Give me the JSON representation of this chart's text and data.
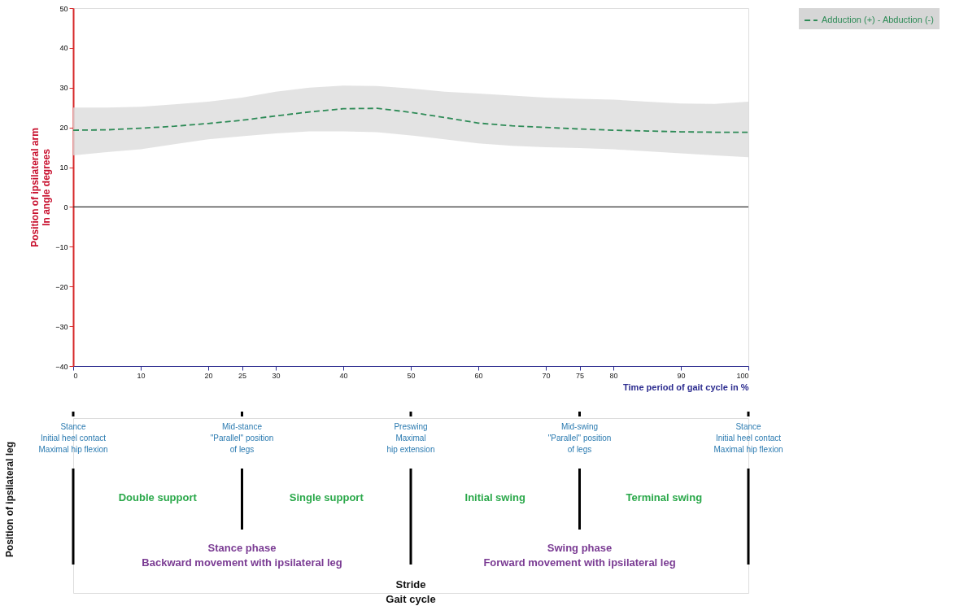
{
  "chart_data": {
    "type": "line",
    "xlabel": "Time period of gait cycle in %",
    "ylabel": "Position of ipsilateral arm\nIn angle degrees",
    "xlim": [
      0,
      100
    ],
    "ylim": [
      -40,
      50
    ],
    "xticks": [
      0,
      10,
      20,
      25,
      30,
      40,
      50,
      60,
      70,
      75,
      80,
      90,
      100
    ],
    "yticks": [
      -40,
      -30,
      -20,
      -10,
      0,
      10,
      20,
      30,
      40,
      50
    ],
    "legend": "right",
    "line_style": "dashed",
    "series": [
      {
        "name": "Adduction (+) - Abduction (-)",
        "color": "#2e8b57",
        "x": [
          0,
          5,
          10,
          15,
          20,
          25,
          30,
          35,
          40,
          45,
          50,
          55,
          60,
          65,
          70,
          75,
          80,
          85,
          90,
          95,
          100
        ],
        "values": [
          19.3,
          19.4,
          19.8,
          20.3,
          21,
          21.8,
          22.9,
          23.9,
          24.7,
          24.8,
          23.8,
          22.5,
          21.1,
          20.4,
          20,
          19.6,
          19.3,
          19.1,
          18.9,
          18.8,
          18.8
        ],
        "lower": [
          13,
          13.8,
          14.5,
          15.8,
          17,
          17.8,
          18.5,
          19,
          19,
          18.8,
          18,
          17,
          16,
          15.4,
          15,
          14.8,
          14.5,
          14,
          13.5,
          13,
          12.5
        ],
        "upper": [
          25,
          25,
          25.2,
          25.8,
          26.5,
          27.5,
          29,
          30,
          30.5,
          30.4,
          29.8,
          29,
          28.5,
          28,
          27.5,
          27.2,
          27,
          26.5,
          26,
          25.9,
          26.5
        ]
      }
    ],
    "ref_lines": [
      {
        "axis": "y",
        "value": 0,
        "color": "#333333"
      },
      {
        "axis": "x",
        "value": 0,
        "label": "Stance\nInitial heel contact\nMaximal hip flexion"
      },
      {
        "axis": "x",
        "value": 25,
        "label": "Mid-stance\n\"Parallel\" position\nof legs"
      },
      {
        "axis": "x",
        "value": 50,
        "label": "Preswing\nMaximal\nhip extension"
      },
      {
        "axis": "x",
        "value": 75,
        "label": "Mid-swing\n\"Parallel\" position\nof legs"
      },
      {
        "axis": "x",
        "value": 100,
        "label": "Stance\nInitial heel contact\nMaximal hip flexion"
      }
    ],
    "annotations": [
      "Position of ipsilateral leg",
      "Double support",
      "Single support",
      "Initial swing",
      "Terminal swing",
      "Stance phase\nBackward movement with ipsilateral leg",
      "Swing phase\nForward movement with ipsilateral leg",
      "Stride\nGait cycle"
    ]
  }
}
